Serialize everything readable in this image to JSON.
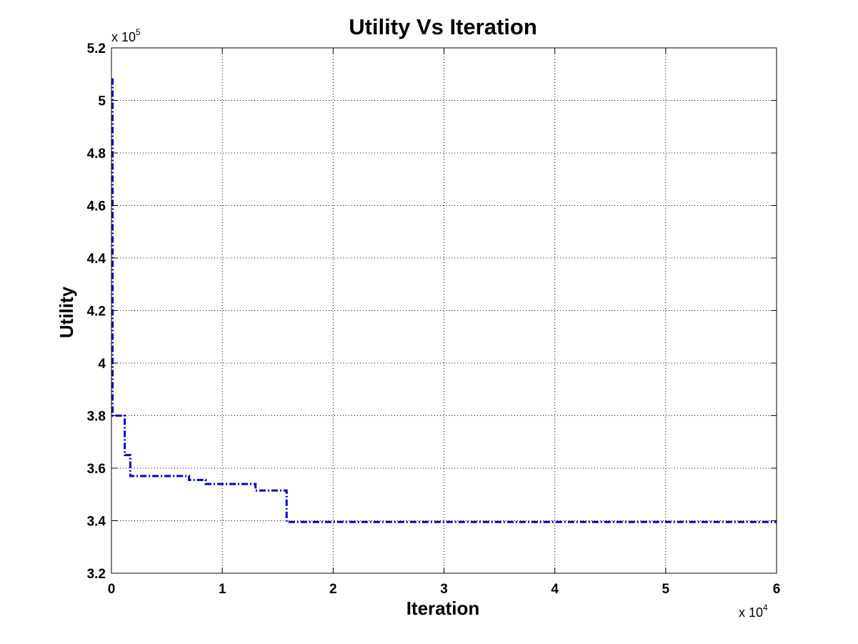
{
  "chart_data": {
    "type": "line",
    "title": "Utility Vs Iteration",
    "xlabel": "Iteration",
    "ylabel": "Utility",
    "x_multiplier": {
      "base": "x 10",
      "exponent": "4"
    },
    "y_multiplier": {
      "base": "x 10",
      "exponent": "5"
    },
    "xlim": [
      0,
      6
    ],
    "ylim": [
      3.2,
      5.2
    ],
    "xticks": [
      "0",
      "1",
      "2",
      "3",
      "4",
      "5",
      "6"
    ],
    "yticks": [
      "3.2",
      "3.4",
      "3.6",
      "3.8",
      "4",
      "4.2",
      "4.4",
      "4.6",
      "4.8",
      "5",
      "5.2"
    ],
    "grid": true,
    "series": [
      {
        "color": "#0000d0",
        "style": "dash-dot",
        "x": [
          0.0,
          0.01,
          0.01,
          0.12,
          0.12,
          0.17,
          0.17,
          0.7,
          0.7,
          0.85,
          0.85,
          1.3,
          1.3,
          1.58,
          1.58,
          6.0
        ],
        "y": [
          5.08,
          5.08,
          3.8,
          3.8,
          3.65,
          3.65,
          3.57,
          3.57,
          3.555,
          3.555,
          3.54,
          3.54,
          3.515,
          3.515,
          3.395,
          3.395
        ]
      }
    ]
  }
}
